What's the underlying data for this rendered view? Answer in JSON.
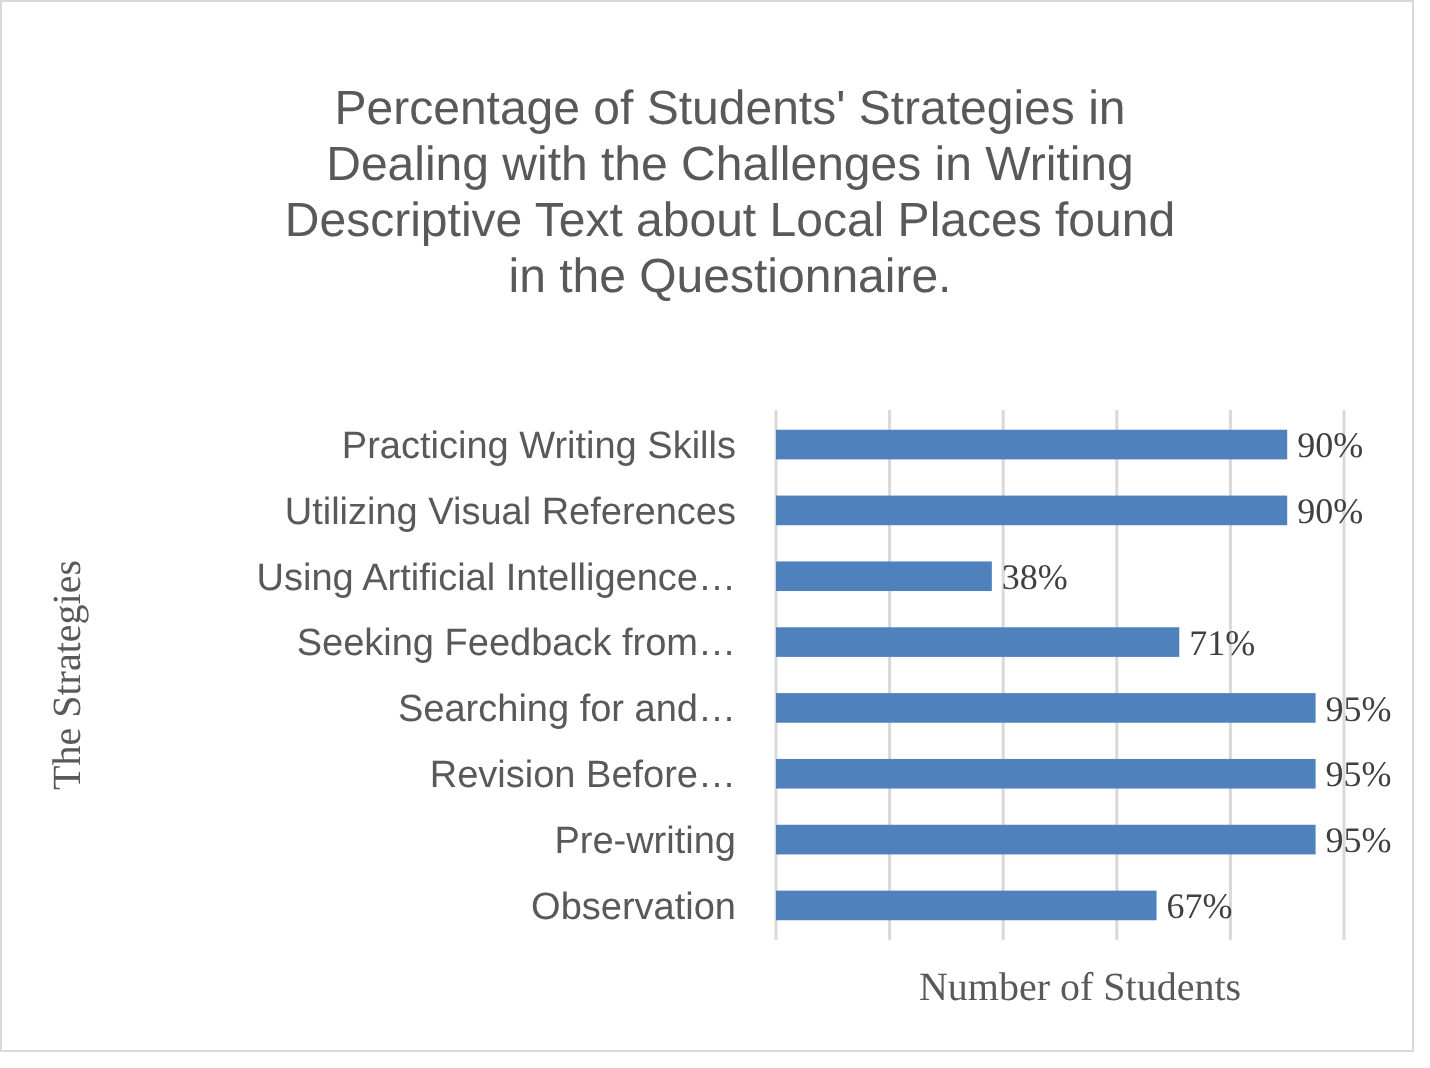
{
  "chart_data": {
    "type": "bar",
    "orientation": "horizontal",
    "title": "Percentage of Students' Strategies in Dealing with the Challenges in Writing Descriptive Text about Local Places found in the Questionnaire.",
    "xlabel": "Number of Students",
    "ylabel": "The Strategies",
    "categories": [
      "Practicing Writing Skills",
      "Utilizing Visual References",
      "Using Artificial Intelligence…",
      "Seeking Feedback from…",
      "Searching for and…",
      "Revision Before…",
      "Pre-writing",
      "Observation"
    ],
    "values": [
      90,
      90,
      38,
      71,
      95,
      95,
      95,
      67
    ],
    "value_labels": [
      "90%",
      "90%",
      "38%",
      "71%",
      "95%",
      "95%",
      "95%",
      "67%"
    ],
    "color": "#4f81bd",
    "xlim": [
      0,
      100
    ],
    "xticks": [
      {
        "value": 0,
        "label": null
      },
      {
        "value": 20,
        "label": null
      },
      {
        "value": 40,
        "label": null
      },
      {
        "value": 60,
        "label": null
      },
      {
        "value": 80,
        "label": null
      },
      {
        "value": 100,
        "label": null
      }
    ],
    "grid": "x",
    "tick_labels": "y"
  }
}
